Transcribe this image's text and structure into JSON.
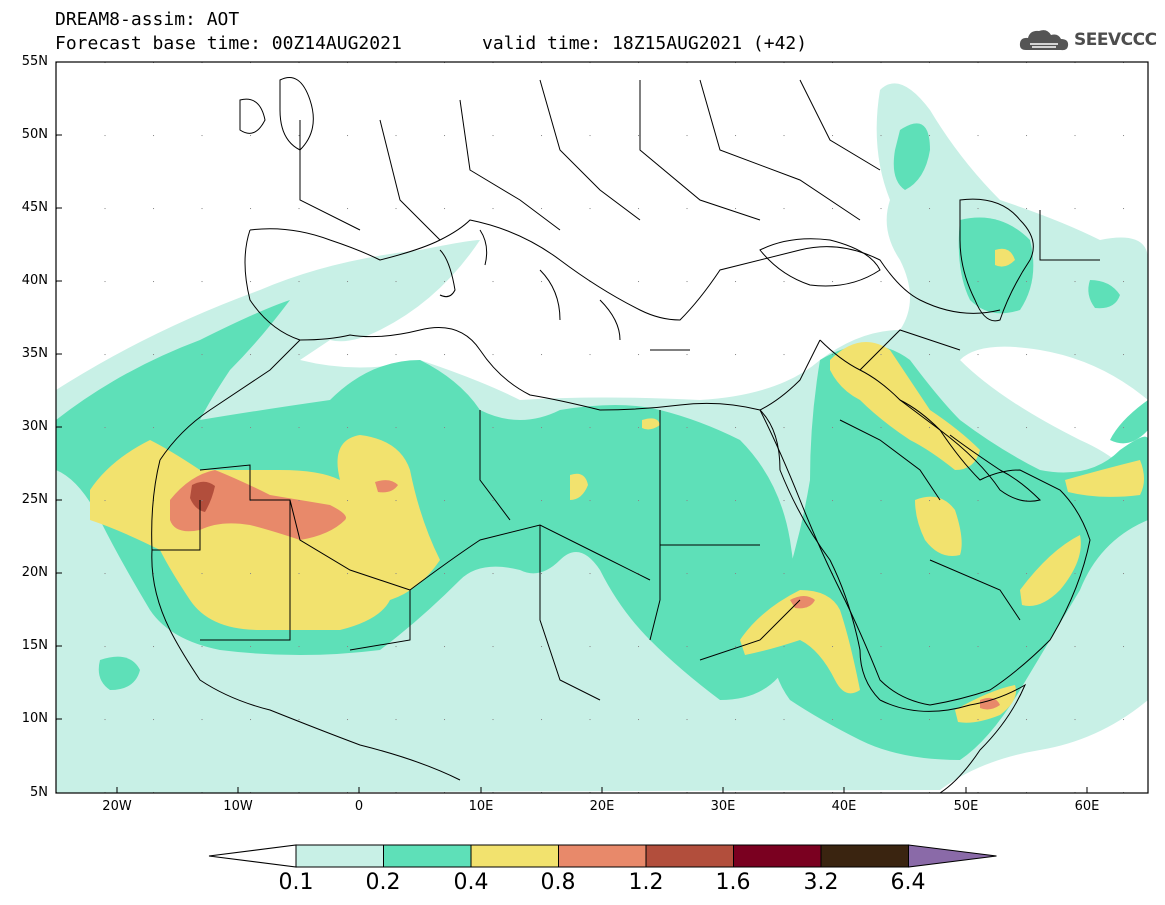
{
  "header": {
    "title": "DREAM8-assim: AOT",
    "base_time": "Forecast base time: 00Z14AUG2021",
    "valid_time": "valid time: 18Z15AUG2021 (+42)",
    "logo_text": "SEEVCCC"
  },
  "map": {
    "lat_labels": [
      "55N",
      "50N",
      "45N",
      "40N",
      "35N",
      "30N",
      "25N",
      "20N",
      "15N",
      "10N",
      "5N"
    ],
    "lon_labels": [
      "20W",
      "10W",
      "0",
      "10E",
      "20E",
      "30E",
      "40E",
      "50E",
      "60E"
    ],
    "extent": {
      "lon_min": -25,
      "lon_max": 65,
      "lat_min": 5,
      "lat_max": 55
    }
  },
  "legend": {
    "labels": [
      "0.1",
      "0.2",
      "0.4",
      "0.8",
      "1.2",
      "1.6",
      "3.2",
      "6.4"
    ],
    "colors": [
      "#c8f0e6",
      "#5ee0b8",
      "#f2e26e",
      "#e8896a",
      "#b24e3c",
      "#7a0020",
      "#3a2410",
      "#8a6aa8"
    ],
    "low_end_color": "#ffffff"
  }
}
